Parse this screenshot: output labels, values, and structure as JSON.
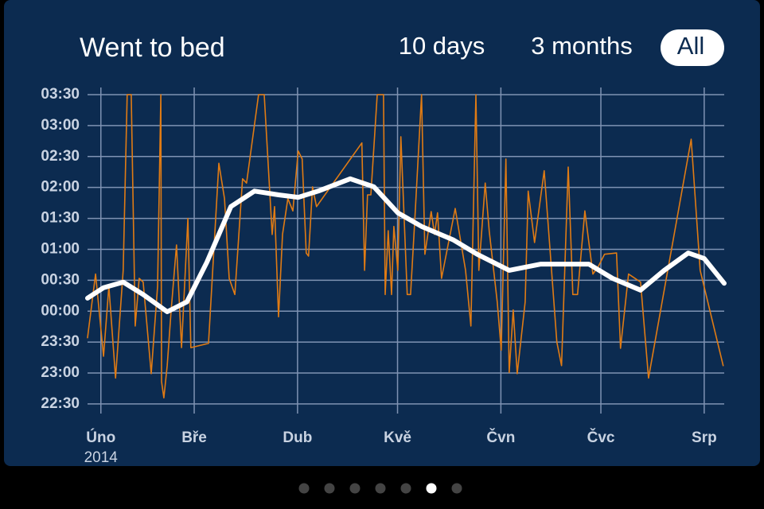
{
  "header": {
    "title": "Went to bed",
    "tabs": [
      "10 days",
      "3 months",
      "All"
    ]
  },
  "chart_data": {
    "type": "line",
    "x_sublabel": "2014",
    "xlim": [
      28,
      219
    ],
    "xticks": [
      {
        "value": 32,
        "label": "Úno"
      },
      {
        "value": 60,
        "label": "Bře"
      },
      {
        "value": 91,
        "label": "Dub"
      },
      {
        "value": 121,
        "label": "Kvě"
      },
      {
        "value": 152,
        "label": "Čvn"
      },
      {
        "value": 182,
        "label": "Čvc"
      },
      {
        "value": 213,
        "label": "Srp"
      }
    ],
    "ylim": [
      -1.65,
      3.5
    ],
    "yticks": [
      {
        "value": -1.5,
        "label": "22:30"
      },
      {
        "value": -1,
        "label": "23:00"
      },
      {
        "value": -0.5,
        "label": "23:30"
      },
      {
        "value": 0,
        "label": "00:00"
      },
      {
        "value": 0.5,
        "label": "00:30"
      },
      {
        "value": 1,
        "label": "01:00"
      },
      {
        "value": 1.5,
        "label": "01:30"
      },
      {
        "value": 2,
        "label": "02:00"
      },
      {
        "value": 2.5,
        "label": "02:30"
      },
      {
        "value": 3,
        "label": "03:00"
      },
      {
        "value": 3.5,
        "label": "03:30"
      }
    ],
    "grid": true,
    "series": [
      {
        "color": "#e07b14",
        "width": 1.6,
        "x": [
          28.0,
          30.4,
          32.8,
          34.4,
          36.4,
          38.7,
          39.9,
          41.1,
          42.3,
          43.5,
          44.7,
          47.1,
          49.0,
          50.0,
          50.2,
          50.9,
          51.9,
          53.1,
          54.7,
          56.2,
          58.1,
          59.0,
          64.3,
          67.4,
          69.1,
          70.5,
          72.2,
          74.5,
          75.7,
          79.3,
          81.0,
          83.4,
          84.1,
          85.3,
          86.5,
          88.1,
          89.6,
          91.2,
          92.4,
          93.6,
          94.3,
          95.5,
          96.7,
          110.3,
          111.1,
          112.0,
          113.0,
          114.9,
          116.8,
          117.3,
          118.2,
          119.2,
          119.9,
          121.1,
          122.0,
          123.9,
          124.9,
          126.3,
          128.2,
          129.2,
          131.1,
          132.1,
          133.0,
          134.2,
          138.3,
          141.4,
          143.0,
          144.5,
          145.4,
          147.3,
          148.5,
          150.9,
          152.1,
          153.5,
          154.5,
          155.7,
          156.9,
          159.3,
          160.2,
          162.1,
          165.0,
          168.8,
          170.2,
          172.2,
          173.6,
          175.0,
          177.2,
          179.6,
          181.2,
          183.1,
          186.7,
          187.9,
          190.3,
          193.9,
          196.3,
          209.1,
          211.8,
          218.7
        ],
        "values": [
          -0.43,
          0.6,
          -0.73,
          0.4,
          -1.08,
          0.66,
          3.5,
          3.5,
          -0.24,
          0.53,
          0.47,
          -1.01,
          0.4,
          3.5,
          -1.14,
          -1.4,
          -0.88,
          0.02,
          1.07,
          -0.59,
          1.5,
          -0.59,
          -0.52,
          2.39,
          1.82,
          0.53,
          0.27,
          2.14,
          2.07,
          3.5,
          3.5,
          1.24,
          1.69,
          -0.09,
          1.24,
          1.82,
          1.62,
          2.59,
          2.46,
          0.94,
          0.89,
          2.01,
          1.69,
          2.72,
          0.66,
          1.88,
          1.88,
          3.5,
          3.5,
          0.27,
          1.3,
          0.27,
          1.37,
          0.66,
          2.82,
          0.27,
          0.27,
          1.59,
          3.5,
          0.92,
          1.61,
          1.24,
          1.59,
          0.53,
          1.66,
          0.66,
          -0.24,
          3.5,
          0.66,
          2.07,
          1.3,
          0.15,
          -0.63,
          2.46,
          -0.99,
          0.02,
          -1.01,
          0.15,
          1.94,
          1.11,
          2.27,
          -0.5,
          -0.88,
          2.33,
          0.27,
          0.27,
          1.62,
          0.6,
          0.72,
          0.92,
          0.94,
          -0.6,
          0.6,
          0.47,
          -1.08,
          2.78,
          0.66,
          -0.88
        ]
      },
      {
        "color": "#ffffff",
        "width": 6,
        "x": [
          28.0,
          32.8,
          38.7,
          44.7,
          51.9,
          57.8,
          63.8,
          71.0,
          78.1,
          85.3,
          91.2,
          97.2,
          106.8,
          113.9,
          121.1,
          128.2,
          137.8,
          144.9,
          154.5,
          164.0,
          178.4,
          185.5,
          193.9,
          201.0,
          208.2,
          213.0,
          219.0
        ],
        "values": [
          0.21,
          0.38,
          0.47,
          0.27,
          -0.01,
          0.15,
          0.79,
          1.69,
          1.94,
          1.88,
          1.84,
          1.94,
          2.14,
          2.01,
          1.59,
          1.37,
          1.15,
          0.92,
          0.66,
          0.76,
          0.76,
          0.53,
          0.34,
          0.66,
          0.94,
          0.85,
          0.45
        ]
      }
    ]
  }
}
